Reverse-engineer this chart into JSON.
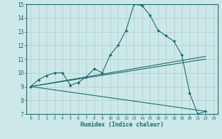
{
  "xlabel": "Humidex (Indice chaleur)",
  "background_color": "#cce8e8",
  "grid_color": "#aacccc",
  "line_color": "#1a6b6b",
  "xlim": [
    -0.5,
    23.5
  ],
  "ylim": [
    7,
    15
  ],
  "xticks": [
    0,
    1,
    2,
    3,
    4,
    5,
    6,
    7,
    8,
    9,
    10,
    11,
    12,
    13,
    14,
    15,
    16,
    17,
    18,
    19,
    20,
    21,
    22,
    23
  ],
  "yticks": [
    7,
    8,
    9,
    10,
    11,
    12,
    13,
    14,
    15
  ],
  "series1_x": [
    0,
    1,
    2,
    3,
    4,
    5,
    6,
    7,
    8,
    9,
    10,
    11,
    12,
    13,
    14,
    15,
    16,
    17,
    18,
    19,
    20,
    21,
    22
  ],
  "series1_y": [
    9.0,
    9.5,
    9.8,
    10.0,
    10.0,
    9.1,
    9.3,
    9.7,
    10.3,
    10.0,
    11.3,
    12.0,
    13.1,
    15.0,
    14.9,
    14.2,
    13.1,
    12.7,
    12.3,
    11.3,
    8.5,
    7.0,
    7.2
  ],
  "series2_x": [
    0,
    22
  ],
  "series2_y": [
    9.0,
    11.2
  ],
  "series3_x": [
    0,
    22
  ],
  "series3_y": [
    9.0,
    7.2
  ],
  "series4_x": [
    0,
    22
  ],
  "series4_y": [
    9.0,
    11.0
  ]
}
